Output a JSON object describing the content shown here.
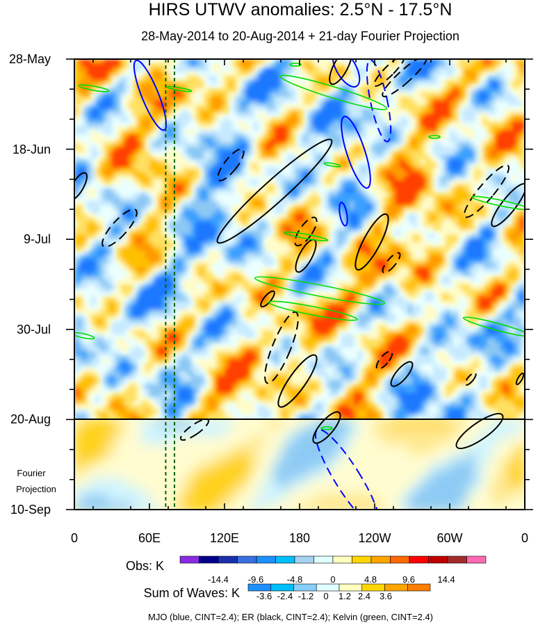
{
  "chart_data": {
    "type": "heatmap",
    "title": "HIRS UTWV anomalies: 2.5°N - 17.5°N",
    "subtitle": "28-May-2014 to 20-Aug-2014 + 21-day Fourier Projection",
    "x_ticks": [
      "0",
      "60E",
      "120E",
      "180",
      "120W",
      "60W",
      "0"
    ],
    "y_ticks": [
      "28-May",
      "18-Jun",
      "9-Jul",
      "30-Jul",
      "20-Aug",
      "10-Sep"
    ],
    "projection_label_line1": "Fourier",
    "projection_label_line2": "Projection",
    "obs_colorbar": {
      "label": "Obs: K",
      "tick_labels": [
        "-14.4",
        "-9.6",
        "-4.8",
        "0",
        "4.8",
        "9.6",
        "14.4"
      ],
      "colors": [
        "#8a2be2",
        "#00008b",
        "#1a2fb0",
        "#3a6fe0",
        "#1e90ff",
        "#00bfff",
        "#a4d3ee",
        "#e0ffff",
        "#ffffc0",
        "#ffd700",
        "#ffa500",
        "#ff6a00",
        "#ff0000",
        "#c00000",
        "#a52a2a",
        "#ff69b4"
      ]
    },
    "waves_colorbar": {
      "label": "Sum of Waves: K",
      "tick_labels": [
        "-3.6",
        "-2.4",
        "-1.2",
        "0",
        "1.2",
        "2.4",
        "3.6"
      ],
      "colors": [
        "#1e90ff",
        "#00bfff",
        "#87cefa",
        "#e0ffff",
        "#ffffc0",
        "#ffd700",
        "#ffa500",
        "#ff7f00"
      ]
    },
    "footer": "MJO (blue, CINT=2.4); ER (black, CINT=2.4); Kelvin (green, CINT=2.4)",
    "x_range_deg": [
      0,
      360
    ],
    "y_range_days": [
      0,
      105
    ],
    "projection_start_day": 84,
    "reference_longitudes_deg": [
      73,
      80
    ],
    "contour_series": [
      {
        "name": "MJO",
        "color": "#0000ff"
      },
      {
        "name": "ER",
        "color": "#000000"
      },
      {
        "name": "Kelvin",
        "color": "#00dd00"
      }
    ]
  }
}
